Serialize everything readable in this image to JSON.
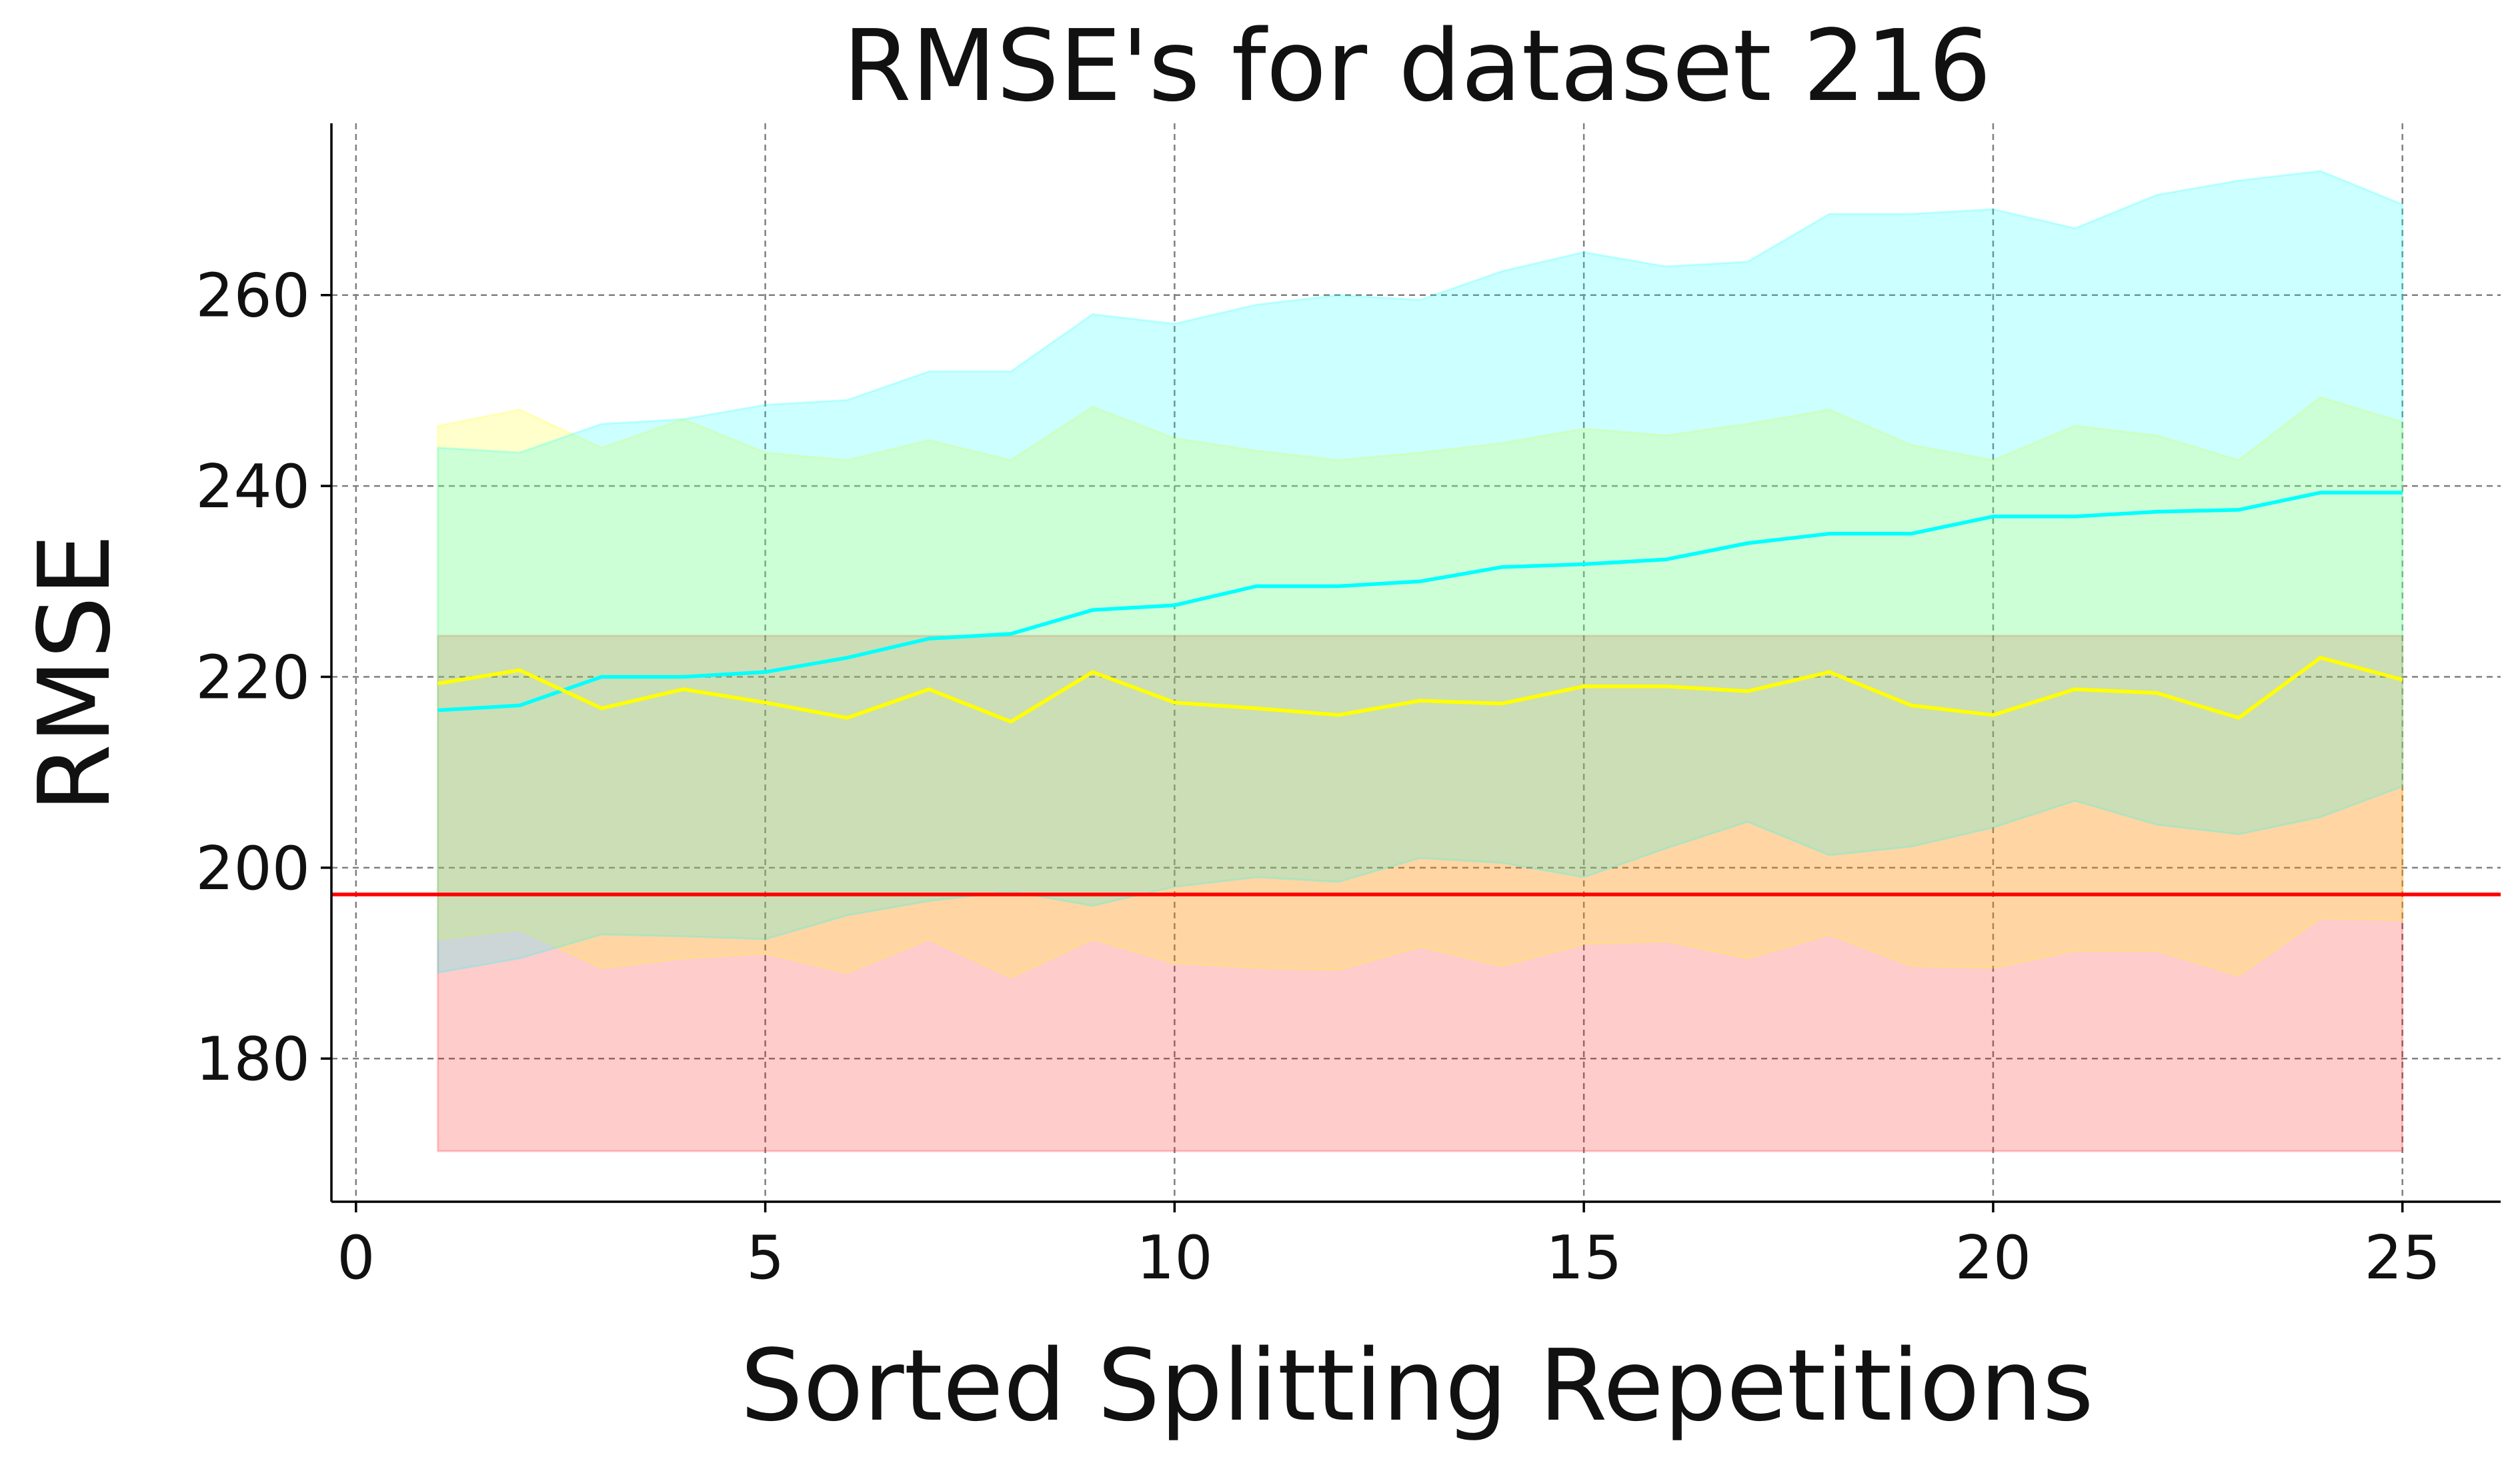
{
  "chart_data": {
    "type": "line",
    "title": "RMSE's for dataset 216",
    "xlabel": "Sorted Splitting Repetitions",
    "ylabel": "RMSE",
    "xlim": [
      -0.3,
      26.2
    ],
    "ylim": [
      165,
      278
    ],
    "xticks": [
      0,
      5,
      10,
      15,
      20,
      25
    ],
    "yticks": [
      180,
      200,
      220,
      240,
      260
    ],
    "grid": true,
    "x": [
      1,
      2,
      3,
      4,
      5,
      6,
      7,
      8,
      9,
      10,
      11,
      12,
      13,
      14,
      15,
      16,
      17,
      18,
      19,
      20,
      21,
      22,
      23,
      24,
      25
    ],
    "series": [
      {
        "color": "#00ffff",
        "values": [
          216.5,
          217,
          220,
          220,
          220.5,
          222,
          224,
          224.5,
          227,
          227.5,
          229.5,
          229.5,
          230,
          231.5,
          231.8,
          232.3,
          234,
          235,
          235,
          236.8,
          236.8,
          237.3,
          237.5,
          239.3,
          239.3
        ]
      },
      {
        "color": "#ffff00",
        "values": [
          219.3,
          220.7,
          216.7,
          218.7,
          217.3,
          215.7,
          218.7,
          215.3,
          220.5,
          217.3,
          216.7,
          216,
          217.5,
          217.2,
          219,
          219,
          218.5,
          220.5,
          217,
          216,
          218.7,
          218.3,
          215.7,
          222,
          219.7
        ]
      },
      {
        "color": "#ff0000",
        "values": [
          197.2,
          197.2,
          197.2,
          197.2,
          197.2,
          197.2,
          197.2,
          197.2,
          197.2,
          197.2,
          197.2,
          197.2,
          197.2,
          197.2,
          197.2,
          197.2,
          197.2,
          197.2,
          197.2,
          197.2,
          197.2,
          197.2,
          197.2,
          197.2,
          197.2
        ],
        "full_width": true
      }
    ],
    "bands": [
      {
        "color": "#ff0000",
        "opacity": 0.2,
        "lower": [
          170.3,
          170.3,
          170.3,
          170.3,
          170.3,
          170.3,
          170.3,
          170.3,
          170.3,
          170.3,
          170.3,
          170.3,
          170.3,
          170.3,
          170.3,
          170.3,
          170.3,
          170.3,
          170.3,
          170.3,
          170.3,
          170.3,
          170.3,
          170.3,
          170.3
        ],
        "upper": [
          224.3,
          224.3,
          224.3,
          224.3,
          224.3,
          224.3,
          224.3,
          224.3,
          224.3,
          224.3,
          224.3,
          224.3,
          224.3,
          224.3,
          224.3,
          224.3,
          224.3,
          224.3,
          224.3,
          224.3,
          224.3,
          224.3,
          224.3,
          224.3,
          224.3
        ]
      },
      {
        "color": "#ffff00",
        "opacity": 0.2,
        "lower": [
          192.5,
          193.5,
          189.5,
          190.5,
          191,
          189,
          192.5,
          188.5,
          192.5,
          190,
          189.5,
          189.3,
          191.7,
          189.7,
          192,
          192.3,
          190.5,
          193,
          189.7,
          189.5,
          191.3,
          191.3,
          188.7,
          194.7,
          194.5
        ],
        "upper": [
          246.3,
          248,
          244,
          247,
          243.5,
          242.7,
          244.8,
          242.7,
          248.3,
          245,
          243.7,
          242.7,
          243.5,
          244.5,
          246,
          245.3,
          246.5,
          248,
          244.3,
          242.7,
          246.3,
          245.3,
          242.7,
          249.3,
          246.7
        ]
      },
      {
        "color": "#00ffff",
        "opacity": 0.2,
        "lower": [
          189,
          190.5,
          193,
          192.8,
          192.5,
          195,
          196.5,
          197.5,
          196,
          198,
          199,
          198.5,
          201,
          200.5,
          199,
          202,
          204.8,
          201.3,
          202.2,
          204.2,
          207,
          204.5,
          203.5,
          205.3,
          208.5
        ],
        "upper": [
          244,
          243.5,
          246.5,
          247,
          248.5,
          249,
          252,
          252,
          258,
          257,
          259,
          260,
          259.5,
          262.5,
          264.5,
          263,
          263.5,
          268.5,
          268.5,
          269,
          267,
          270.5,
          272,
          273,
          269.5
        ]
      }
    ]
  }
}
